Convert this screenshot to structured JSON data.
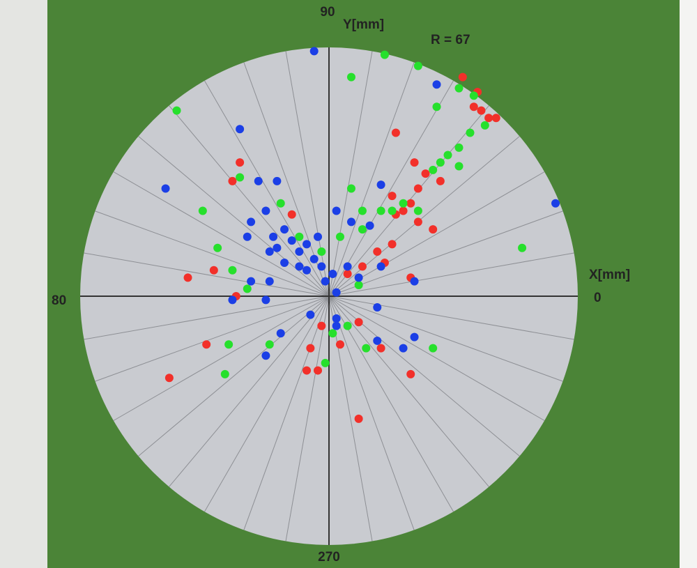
{
  "chart_data": {
    "type": "scatter",
    "x_label": "X[mm]",
    "y_label": "Y[mm]",
    "radius_label": "R = 67",
    "angle_labels": [
      "90",
      "0",
      "80",
      "270"
    ],
    "xlim": [
      -67,
      67
    ],
    "ylim": [
      -67,
      67
    ],
    "series": [
      {
        "color": "#f2302a",
        "x": [
          36,
          40,
          39,
          41,
          43,
          45,
          18,
          23,
          26,
          24,
          22,
          20,
          18,
          24,
          28,
          17,
          13,
          15,
          9,
          5,
          -26,
          -24,
          -10,
          -38,
          -31,
          -25,
          -33,
          -43,
          -5,
          -3,
          -2,
          3,
          8,
          14,
          22,
          8,
          -6,
          22,
          30,
          17
        ],
        "values": [
          59,
          55,
          51,
          50,
          48,
          48,
          44,
          36,
          33,
          29,
          25,
          23,
          22,
          20,
          18,
          14,
          12,
          9,
          8,
          6,
          31,
          36,
          22,
          5,
          7,
          0,
          -13,
          -22,
          -14,
          -20,
          -8,
          -13,
          -7,
          -14,
          -21,
          -33,
          -20,
          5,
          31,
          27
        ]
      },
      {
        "color": "#26e02c",
        "x": [
          15,
          24,
          6,
          35,
          39,
          29,
          -41,
          38,
          35,
          32,
          30,
          35,
          28,
          20,
          17,
          14,
          9,
          6,
          -24,
          -34,
          -30,
          -26,
          -22,
          -13,
          -8,
          -2,
          3,
          9,
          52,
          42,
          1,
          -1,
          5,
          10,
          28,
          -27,
          -28,
          -16,
          8,
          24
        ],
        "values": [
          65,
          62,
          59,
          56,
          54,
          51,
          50,
          44,
          40,
          38,
          36,
          35,
          34,
          25,
          23,
          23,
          23,
          29,
          32,
          23,
          13,
          7,
          2,
          25,
          16,
          12,
          16,
          18,
          13,
          46,
          -10,
          -18,
          -8,
          -14,
          -14,
          -13,
          -21,
          -13,
          3,
          23
        ]
      },
      {
        "color": "#1b3fe6",
        "x": [
          -4,
          29,
          -24,
          -44,
          61,
          14,
          2,
          6,
          11,
          -19,
          -14,
          -22,
          -21,
          -17,
          -15,
          -14,
          -12,
          -10,
          -8,
          -6,
          -4,
          -3,
          -2,
          -6,
          -8,
          -12,
          -16,
          -16,
          -21,
          -26,
          -17,
          -1,
          1,
          5,
          14,
          13,
          2,
          2,
          -5,
          -13,
          -17,
          2,
          20,
          23,
          13,
          23,
          8
        ],
        "values": [
          66,
          57,
          45,
          29,
          25,
          30,
          23,
          20,
          19,
          31,
          31,
          16,
          20,
          23,
          16,
          13,
          18,
          15,
          12,
          14,
          10,
          16,
          8,
          7,
          8,
          9,
          12,
          4,
          4,
          -1,
          -1,
          4,
          6,
          8,
          8,
          -3,
          1,
          -6,
          -5,
          -10,
          -16,
          -8,
          -14,
          -11,
          -12,
          4,
          5
        ]
      }
    ]
  }
}
